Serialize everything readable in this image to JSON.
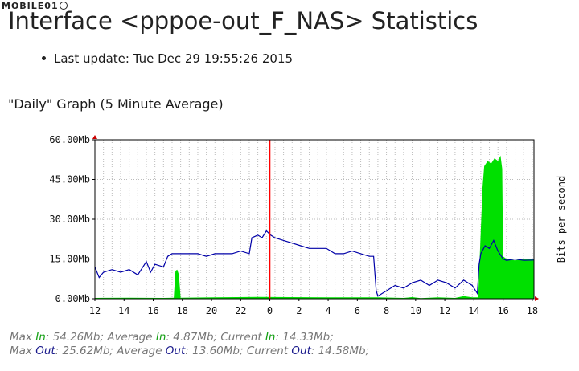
{
  "watermark": "MOBILE01",
  "title": "Interface <pppoe-out_F_NAS> Statistics",
  "last_update": "Last update: Tue Dec 29 19:55:26 2015",
  "graph_heading": "\"Daily\" Graph (5 Minute Average)",
  "colors": {
    "in": "#00e000",
    "out": "#0000a8",
    "grid": "#bbbbbb",
    "now_marker": "#ff0000"
  },
  "stats": {
    "max": "Max",
    "average": "Average",
    "current": "Current",
    "in": "In",
    "out": "Out",
    "in_values": {
      "max": "54.26Mb",
      "average": "4.87Mb",
      "current": "14.33Mb"
    },
    "out_values": {
      "max": "25.62Mb",
      "average": "13.60Mb",
      "current": "14.58Mb"
    }
  },
  "chart_data": {
    "type": "area",
    "ylabel": "Bits per second",
    "yticks": [
      "0.00Mb",
      "15.00Mb",
      "30.00Mb",
      "45.00Mb",
      "60.00Mb"
    ],
    "ylim": [
      0,
      60
    ],
    "xticks": [
      "12",
      "14",
      "16",
      "18",
      "20",
      "22",
      "0",
      "2",
      "4",
      "6",
      "8",
      "10",
      "12",
      "14",
      "16",
      "18"
    ],
    "grid": true,
    "now_marker_hour": "0",
    "series": [
      {
        "key": "in",
        "style": "filled",
        "points": [
          [
            0,
            0.3
          ],
          [
            4,
            0.4
          ],
          [
            8,
            0.3
          ],
          [
            9.2,
            0.4
          ],
          [
            9.4,
            10.5
          ],
          [
            9.6,
            11
          ],
          [
            9.8,
            9
          ],
          [
            10,
            0.4
          ],
          [
            14,
            0.5
          ],
          [
            19,
            0.7
          ],
          [
            27,
            0.5
          ],
          [
            33,
            0.5
          ],
          [
            36,
            0.3
          ],
          [
            37,
            0.6
          ],
          [
            38,
            0.2
          ],
          [
            40,
            0.5
          ],
          [
            42,
            0.3
          ],
          [
            43,
            1
          ],
          [
            44,
            0.5
          ],
          [
            44.7,
            0.5
          ],
          [
            44.8,
            10
          ],
          [
            45,
            26
          ],
          [
            45.2,
            42
          ],
          [
            45.4,
            50
          ],
          [
            45.8,
            52
          ],
          [
            46.2,
            51
          ],
          [
            46.6,
            53
          ],
          [
            47,
            52
          ],
          [
            47.3,
            54
          ],
          [
            47.5,
            49
          ],
          [
            47.6,
            16
          ],
          [
            48,
            15
          ],
          [
            49,
            14.5
          ],
          [
            50,
            15
          ],
          [
            51.2,
            15
          ]
        ]
      },
      {
        "key": "out",
        "style": "line",
        "points": [
          [
            0,
            12
          ],
          [
            0.5,
            8
          ],
          [
            1,
            10
          ],
          [
            2,
            11
          ],
          [
            3,
            10
          ],
          [
            4,
            11
          ],
          [
            5,
            9
          ],
          [
            6,
            14
          ],
          [
            6.5,
            10
          ],
          [
            7,
            13
          ],
          [
            8,
            12
          ],
          [
            8.5,
            16
          ],
          [
            9,
            17
          ],
          [
            10,
            17
          ],
          [
            11,
            17
          ],
          [
            12,
            17
          ],
          [
            13,
            16
          ],
          [
            14,
            17
          ],
          [
            16,
            17
          ],
          [
            17,
            18
          ],
          [
            18,
            17
          ],
          [
            18.3,
            23
          ],
          [
            19,
            24
          ],
          [
            19.5,
            23
          ],
          [
            20,
            25.6
          ],
          [
            20.5,
            24
          ],
          [
            21,
            23
          ],
          [
            22,
            22
          ],
          [
            23,
            21
          ],
          [
            24,
            20
          ],
          [
            25,
            19
          ],
          [
            26,
            19
          ],
          [
            27,
            19
          ],
          [
            28,
            17
          ],
          [
            29,
            17
          ],
          [
            30,
            18
          ],
          [
            31,
            17
          ],
          [
            32,
            16
          ],
          [
            32.5,
            16
          ],
          [
            32.8,
            3
          ],
          [
            33,
            1
          ],
          [
            34,
            3
          ],
          [
            35,
            5
          ],
          [
            36,
            4
          ],
          [
            37,
            6
          ],
          [
            38,
            7
          ],
          [
            39,
            5
          ],
          [
            40,
            7
          ],
          [
            41,
            6
          ],
          [
            42,
            4
          ],
          [
            43,
            7
          ],
          [
            44,
            5
          ],
          [
            44.6,
            2
          ],
          [
            44.8,
            13
          ],
          [
            45,
            17
          ],
          [
            45.5,
            20
          ],
          [
            46,
            19
          ],
          [
            46.5,
            22
          ],
          [
            47,
            18
          ],
          [
            47.4,
            16
          ],
          [
            47.6,
            15
          ],
          [
            48,
            14.5
          ],
          [
            49,
            15
          ],
          [
            50,
            14.5
          ],
          [
            51.2,
            14.6
          ]
        ]
      }
    ]
  }
}
